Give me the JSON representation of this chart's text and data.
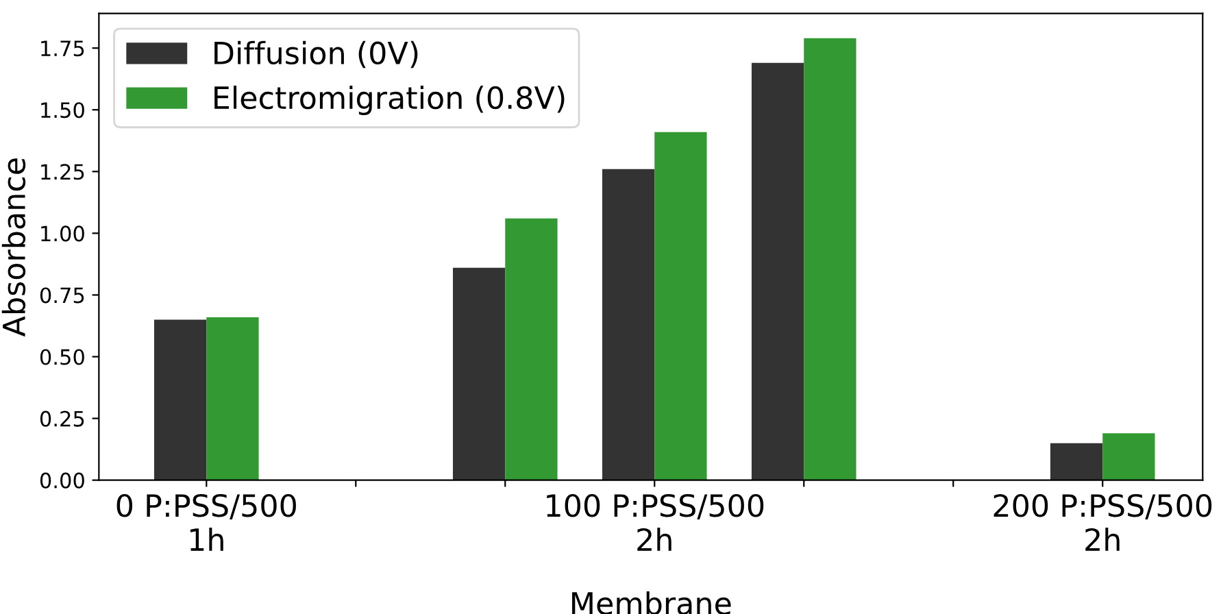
{
  "chart_data": {
    "type": "bar",
    "xlabel": "Membrane",
    "ylabel": "Absorbance",
    "categories": [
      "0 P:PSS/500\n1h",
      null,
      null,
      "100 P:PSS/500\n2h",
      null,
      null,
      "200 P:PSS/500\n2h"
    ],
    "series": [
      {
        "name": "Diffusion (0V)",
        "color": "#333333",
        "values": [
          0.65,
          null,
          0.86,
          1.26,
          1.69,
          null,
          0.15
        ]
      },
      {
        "name": "Electromigration (0.8V)",
        "color": "#339933",
        "values": [
          0.66,
          null,
          1.06,
          1.41,
          1.79,
          null,
          0.19
        ]
      }
    ],
    "ylim": [
      0,
      1.89
    ],
    "yticks": [
      {
        "value": 0,
        "label": "0.00"
      },
      {
        "value": 0.25,
        "label": "0.25"
      },
      {
        "value": 0.5,
        "label": "0.50"
      },
      {
        "value": 0.75,
        "label": "0.75"
      },
      {
        "value": 1.0,
        "label": "1.00"
      },
      {
        "value": 1.25,
        "label": "1.25"
      },
      {
        "value": 1.5,
        "label": "1.50"
      },
      {
        "value": 1.75,
        "label": "1.75"
      }
    ],
    "grid": false,
    "legend": "top left"
  }
}
